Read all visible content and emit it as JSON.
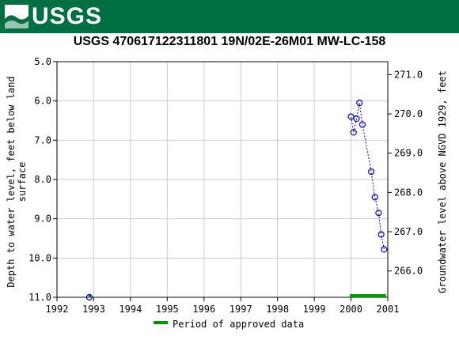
{
  "header": {
    "logo_text": "USGS",
    "banner_color": "#006f41"
  },
  "chart_data": {
    "type": "scatter",
    "title": "USGS 470617122311801 19N/02E-26M01 MW-LC-158",
    "ylabel_left": "Depth to water level, feet below land surface",
    "ylabel_right": "Groundwater level above NGVD 1929, feet",
    "xlim": [
      1992,
      2001
    ],
    "ylim_left": [
      5.0,
      11.0
    ],
    "ylim_right": [
      265.33,
      271.33
    ],
    "x_ticks": [
      "1992",
      "1993",
      "1994",
      "1995",
      "1996",
      "1997",
      "1998",
      "1999",
      "2000",
      "2001"
    ],
    "y_ticks_left": [
      "5.0",
      "6.0",
      "7.0",
      "8.0",
      "9.0",
      "10.0",
      "11.0"
    ],
    "y_ticks_right": [
      "266.0",
      "267.0",
      "268.0",
      "269.0",
      "270.0",
      "271.0"
    ],
    "grid": true,
    "series": [
      {
        "color": "#0000cc",
        "points": [
          {
            "x": 1992.88,
            "y": 11.0
          },
          {
            "x": 2000.0,
            "y": 6.4
          },
          {
            "x": 2000.07,
            "y": 6.8
          },
          {
            "x": 2000.15,
            "y": 6.45
          },
          {
            "x": 2000.23,
            "y": 6.05
          },
          {
            "x": 2000.31,
            "y": 6.6
          },
          {
            "x": 2000.55,
            "y": 7.8
          },
          {
            "x": 2000.65,
            "y": 8.45
          },
          {
            "x": 2000.75,
            "y": 8.85
          },
          {
            "x": 2000.82,
            "y": 9.4
          },
          {
            "x": 2000.9,
            "y": 9.78
          }
        ]
      }
    ],
    "approved_periods": [
      {
        "start": 1992.86,
        "end": 1992.92
      },
      {
        "start": 1999.97,
        "end": 2000.95
      }
    ],
    "approved_color": "#009900",
    "legend": {
      "label": "Period of approved data",
      "placement": "bottom-center"
    }
  }
}
